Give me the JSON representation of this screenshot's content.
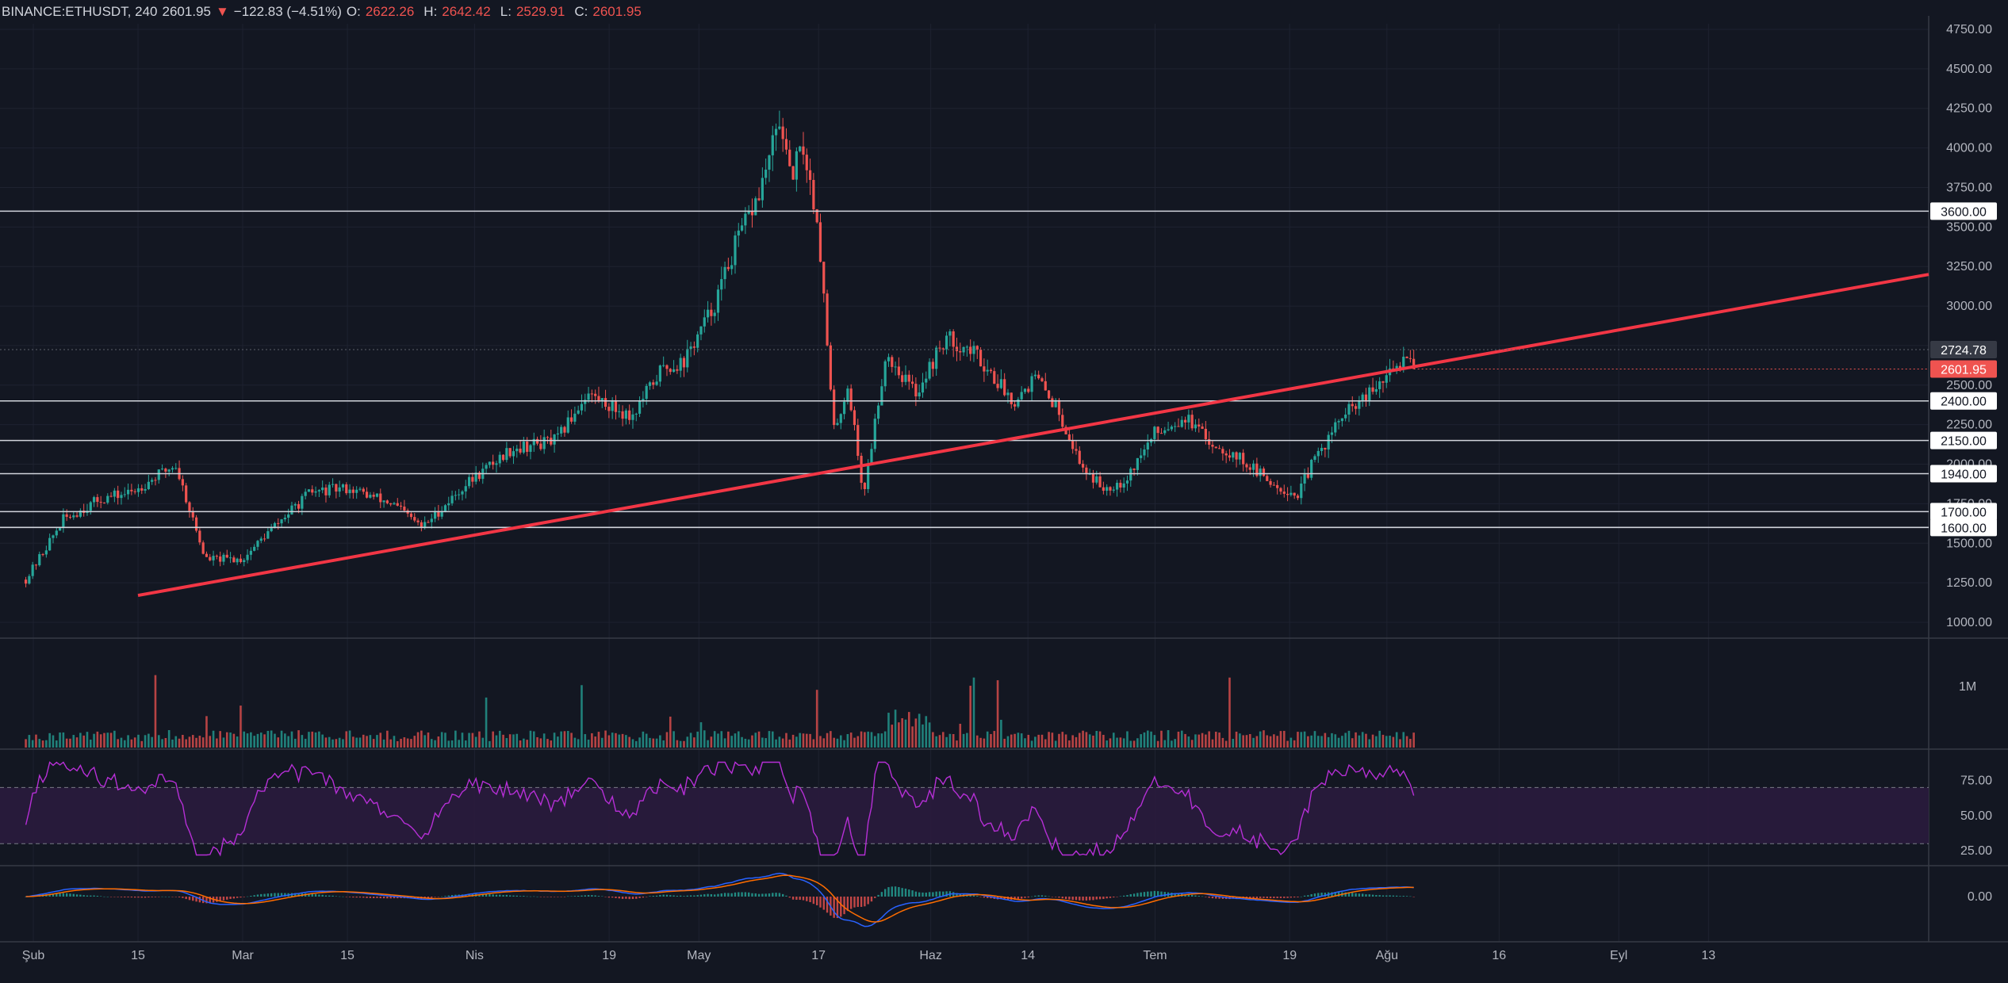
{
  "header": {
    "symbol": "BINANCE:ETHUSDT, 240",
    "last": "2601.95",
    "arrow": "▼",
    "change": "−122.83 (−4.51%)",
    "open_label": "O:",
    "open": "2622.26",
    "high_label": "H:",
    "high": "2642.42",
    "low_label": "L:",
    "low": "2529.91",
    "close_label": "C:",
    "close": "2601.95"
  },
  "colors": {
    "background": "#131722",
    "up": "#26a69a",
    "down": "#ef5350",
    "trendline": "#f23645",
    "hline": "#d1d4dc",
    "rsi": "#b62fd6",
    "rsi_band": "#2a1b3d",
    "macd": "#2962ff",
    "signal": "#ff6d00"
  },
  "price_axis": {
    "ticks": [
      "4750.00",
      "4500.00",
      "4250.00",
      "4000.00",
      "3750.00",
      "3500.00",
      "3250.00",
      "3000.00",
      "2750.00",
      "2500.00",
      "2250.00",
      "2000.00",
      "1750.00",
      "1500.00",
      "1250.00",
      "1000.00"
    ],
    "tags": [
      {
        "label": "3600.00",
        "style": "white"
      },
      {
        "label": "2724.78",
        "style": "gray"
      },
      {
        "label": "2601.95",
        "style": "red"
      },
      {
        "label": "2400.00",
        "style": "white"
      },
      {
        "label": "2150.00",
        "style": "white"
      },
      {
        "label": "1940.00",
        "style": "white"
      },
      {
        "label": "1700.00",
        "style": "white"
      },
      {
        "label": "1600.00",
        "style": "white"
      }
    ]
  },
  "volume_axis": {
    "label": "1M"
  },
  "rsi_axis": {
    "ticks": [
      "75.00",
      "50.00",
      "25.00"
    ]
  },
  "macd_axis": {
    "ticks": [
      "0.00"
    ]
  },
  "time_axis": {
    "labels": [
      "Şub",
      "15",
      "Mar",
      "15",
      "Nis",
      "19",
      "May",
      "17",
      "Haz",
      "14",
      "Tem",
      "19",
      "Ağu",
      "16",
      "Eyl",
      "13"
    ]
  },
  "chart_data": {
    "type": "candlestick",
    "symbol": "BINANCE:ETHUSDT",
    "interval": "240",
    "price_range": [
      1000,
      4750
    ],
    "horizontal_levels": [
      3600,
      2400,
      2150,
      1940,
      1700,
      1600
    ],
    "current_price": 2601.95,
    "marked_price": 2724.78,
    "trendline": {
      "from": {
        "date": "Feb 15",
        "price": 1170
      },
      "to": {
        "date": "Sep 19",
        "price": 3200
      }
    },
    "price_path": [
      [
        "Jan 31",
        1270
      ],
      [
        "Feb 5",
        1650
      ],
      [
        "Feb 10",
        1780
      ],
      [
        "Feb 14",
        1820
      ],
      [
        "Feb 20",
        2000
      ],
      [
        "Feb 24",
        1400
      ],
      [
        "Mar 1",
        1400
      ],
      [
        "Mar 4",
        1550
      ],
      [
        "Mar 10",
        1820
      ],
      [
        "Mar 15",
        1850
      ],
      [
        "Mar 21",
        1750
      ],
      [
        "Mar 25",
        1600
      ],
      [
        "Mar 31",
        1880
      ],
      [
        "Apr 6",
        2100
      ],
      [
        "Apr 12",
        2150
      ],
      [
        "Apr 16",
        2450
      ],
      [
        "Apr 18",
        2400
      ],
      [
        "Apr 22",
        2300
      ],
      [
        "Apr 26",
        2600
      ],
      [
        "Apr 29",
        2650
      ],
      [
        "May 3",
        3000
      ],
      [
        "May 6",
        3400
      ],
      [
        "May 9",
        3700
      ],
      [
        "May 12",
        4200
      ],
      [
        "May 13",
        3800
      ],
      [
        "May 15",
        4000
      ],
      [
        "May 17",
        3500
      ],
      [
        "May 19",
        2200
      ],
      [
        "May 21",
        2500
      ],
      [
        "May 23",
        1800
      ],
      [
        "May 26",
        2700
      ],
      [
        "May 30",
        2450
      ],
      [
        "Jun 3",
        2800
      ],
      [
        "Jun 7",
        2700
      ],
      [
        "Jun 12",
        2400
      ],
      [
        "Jun 15",
        2550
      ],
      [
        "Jun 18",
        2350
      ],
      [
        "Jun 21",
        2000
      ],
      [
        "Jun 24",
        1850
      ],
      [
        "Jun 27",
        1900
      ],
      [
        "Jul 1",
        2200
      ],
      [
        "Jul 5",
        2300
      ],
      [
        "Jul 8",
        2150
      ],
      [
        "Jul 12",
        2050
      ],
      [
        "Jul 16",
        1900
      ],
      [
        "Jul 20",
        1800
      ],
      [
        "Jul 22",
        2000
      ],
      [
        "Jul 26",
        2300
      ],
      [
        "Jul 30",
        2450
      ],
      [
        "Aug 2",
        2600
      ],
      [
        "Aug 4",
        2724
      ],
      [
        "Aug 5",
        2601
      ]
    ],
    "rsi_levels": [
      70,
      30
    ],
    "rsi_range": [
      20,
      90
    ]
  }
}
